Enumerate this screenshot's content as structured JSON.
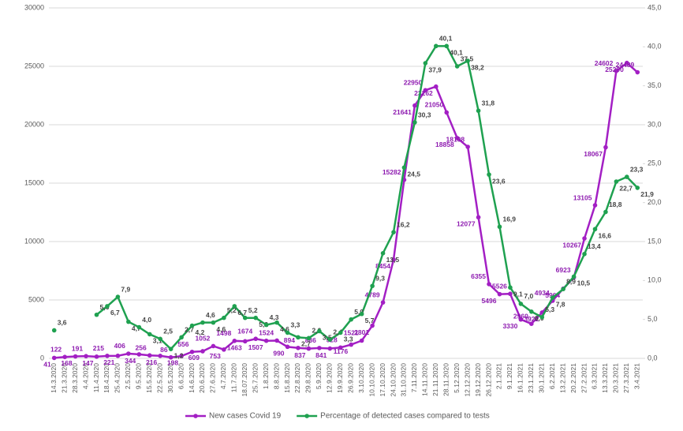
{
  "chart_data": {
    "type": "line",
    "categories": [
      "14.3.2020",
      "21.3.2020",
      "28.3.2020",
      "4.4.2020",
      "11.4.2020",
      "18.4.2020",
      "25.4.2020",
      "2.5.2020",
      "9.5.2020",
      "15.5.2020",
      "22.5.2020",
      "30.5.2020",
      "6.6.2020",
      "14.6.2020",
      "20.6.2020",
      "27.6.2020",
      "4.7.2020",
      "11.7.2020",
      "18.07.2020",
      "25.7.2020",
      "1.8.2020",
      "8.8.2020",
      "15.8.2020",
      "22.8.2020",
      "29.8.2020",
      "5.9.2020",
      "12.9.2020",
      "19.9.2020",
      "26.9.2020",
      "3.10.2020",
      "10.10.2020",
      "17.10.2020",
      "24.10.2020",
      "31.10.2020",
      "7.11.2020",
      "14.11.2020",
      "21.11.2020",
      "28.11.2020",
      "5.12.2020",
      "12.12.2020",
      "19.12.2020",
      "26.12.2020",
      "2.1.2021",
      "9.1.2021",
      "16.1.2021",
      "23.1.2021",
      "30.1.2021",
      "6.2.2021",
      "13.2.2021",
      "20.2.2021",
      "27.2.2021",
      "6.3.2021",
      "13.3.2021",
      "20.3.2021",
      "27.3.2021",
      "3.4.2021"
    ],
    "series": [
      {
        "name": "New cases Covid 19",
        "color": "#a31fc4",
        "axis": "y",
        "values": [
          41,
          122,
          168,
          191,
          147,
          215,
          221,
          406,
          344,
          256,
          216,
          86,
          198,
          556,
          609,
          1052,
          753,
          1498,
          1463,
          1674,
          1507,
          1524,
          990,
          894,
          837,
          886,
          841,
          928,
          1176,
          1521,
          2801,
          4789,
          8454,
          15282,
          21641,
          22950,
          23262,
          21050,
          18858,
          18108,
          12077,
          6355,
          5496,
          5526,
          3330,
          2960,
          3922,
          4934,
          5964,
          6923,
          10267,
          13105,
          18067,
          24602,
          25290,
          24489
        ]
      },
      {
        "name": "Percentage of detected cases compared to tests",
        "color": "#1fa150",
        "axis": "y2",
        "values": [
          3.6,
          null,
          null,
          null,
          5.6,
          6.7,
          7.9,
          4.7,
          4.0,
          3.1,
          2.5,
          1.2,
          2.7,
          4.2,
          4.6,
          4.6,
          5.2,
          6.7,
          5.2,
          5.2,
          4.3,
          4.6,
          3.3,
          2.7,
          2.6,
          3.5,
          2.4,
          3.3,
          5.0,
          5.7,
          9.3,
          13.5,
          16.2,
          24.5,
          30.3,
          37.9,
          40.1,
          40.1,
          37.5,
          38.2,
          31.8,
          23.6,
          16.9,
          9.1,
          7.0,
          6.0,
          5.3,
          7.8,
          8.9,
          10.5,
          13.4,
          16.6,
          18.8,
          22.7,
          23.3,
          21.9
        ],
        "value_labels": [
          "3,6",
          null,
          null,
          null,
          "5,6",
          "6,7",
          "7,9",
          "4,7",
          "4,0",
          "3,1",
          "2,5",
          "1,2",
          "2,7",
          "4,2",
          "4,6",
          "4,6",
          "5,2",
          "6,7",
          "5,2",
          "5,2",
          "4,3",
          "4,6",
          "3,3",
          "2,7",
          "2,6",
          "3,5",
          "2,4",
          "3,3",
          "5,0",
          "5,7",
          "9,3",
          "13,5",
          "16,2",
          "24,5",
          "30,3",
          "37,9",
          "40,1",
          "40,1",
          "37,5",
          "38,2",
          "31,8",
          "23,6",
          "16,9",
          "9,1",
          "7,0",
          "6,0",
          "5,3",
          "7,8",
          "8,9",
          "10,5",
          "13,4",
          "16,6",
          "18,8",
          "22,7",
          "23,3",
          "21,9"
        ]
      }
    ],
    "ylim": [
      0,
      30000
    ],
    "yticks": [
      0,
      5000,
      10000,
      15000,
      20000,
      25000,
      30000
    ],
    "y2lim": [
      0,
      45
    ],
    "y2ticks": [
      {
        "value": 0,
        "label": "0,0"
      },
      {
        "value": 5,
        "label": "5,0"
      },
      {
        "value": 10,
        "label": "10,0"
      },
      {
        "value": 15,
        "label": "15,0"
      },
      {
        "value": 20,
        "label": "20,0"
      },
      {
        "value": 25,
        "label": "25,0"
      },
      {
        "value": 30,
        "label": "30,0"
      },
      {
        "value": 35,
        "label": "35,0"
      },
      {
        "value": 40,
        "label": "40,0"
      },
      {
        "value": 45,
        "label": "45,0"
      }
    ],
    "grid": true,
    "legend": "bottom"
  }
}
